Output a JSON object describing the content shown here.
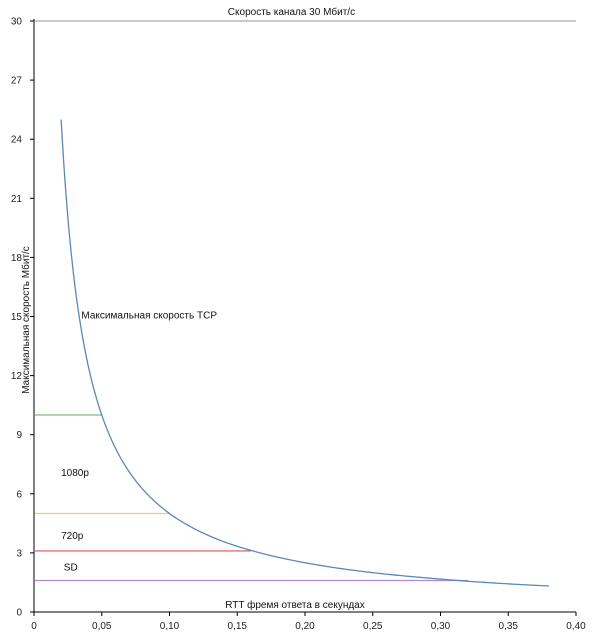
{
  "chart_data": {
    "type": "line",
    "xlabel": "RTT фремя ответа в секундах",
    "ylabel": "Максимальная скорость Мбит/с",
    "xlim": [
      0,
      0.4
    ],
    "ylim": [
      0,
      30
    ],
    "x_ticks": [
      0,
      0.05,
      0.1,
      0.15,
      0.2,
      0.25,
      0.3,
      0.35,
      0.4
    ],
    "x_tick_labels": [
      "0",
      "0,05",
      "0,10",
      "0,15",
      "0,20",
      "0,25",
      "0,30",
      "0,35",
      "0,40"
    ],
    "y_ticks": [
      0,
      3,
      6,
      9,
      12,
      15,
      18,
      21,
      24,
      27,
      30
    ],
    "y_tick_labels": [
      "0",
      "3",
      "6",
      "9",
      "12",
      "15",
      "18",
      "21",
      "24",
      "27",
      "30"
    ],
    "grid": false,
    "series": [
      {
        "name": "Максимальная скорость TCP",
        "color": "#5b88b8",
        "x": [
          0.02,
          0.025,
          0.03,
          0.035,
          0.04,
          0.045,
          0.05,
          0.06,
          0.07,
          0.08,
          0.09,
          0.1,
          0.12,
          0.14,
          0.16,
          0.18,
          0.2,
          0.22,
          0.24,
          0.26,
          0.28,
          0.3,
          0.32,
          0.34,
          0.36,
          0.38
        ],
        "y": [
          25,
          20,
          16.67,
          14.29,
          12.5,
          11.11,
          10,
          8.33,
          7.14,
          6.25,
          5.56,
          5,
          4.17,
          3.57,
          3.13,
          2.78,
          2.5,
          2.27,
          2.08,
          1.92,
          1.79,
          1.67,
          1.56,
          1.47,
          1.39,
          1.32
        ]
      }
    ],
    "reference_lines": [
      {
        "label": "Скорость канала 30 Мбит/с",
        "y": 30,
        "x_end": 0.4,
        "color": "#aaaaaa"
      },
      {
        "label": "1080p",
        "y": 10,
        "x_end": 0.05,
        "color": "#7cc07c"
      },
      {
        "label": "720p",
        "y": 5,
        "x_end": 0.1,
        "color": "#f2c97a"
      },
      {
        "label": "SD",
        "y": 3.1,
        "x_end": 0.16,
        "color": "#d9534f"
      },
      {
        "label": "",
        "y": 1.6,
        "x_end": 0.32,
        "color": "#b58ad1"
      }
    ],
    "annotations": [
      {
        "text": "Скорость канала 30 Мбит/с",
        "x": 0.19,
        "y": 30.3
      },
      {
        "text": "Максимальная скорость TCP",
        "x": 0.035,
        "y": 14.9
      },
      {
        "text": "1080p",
        "x": 0.02,
        "y": 6.9
      },
      {
        "text": "720p",
        "x": 0.02,
        "y": 3.7
      },
      {
        "text": "SD",
        "x": 0.022,
        "y": 2.1
      }
    ]
  }
}
